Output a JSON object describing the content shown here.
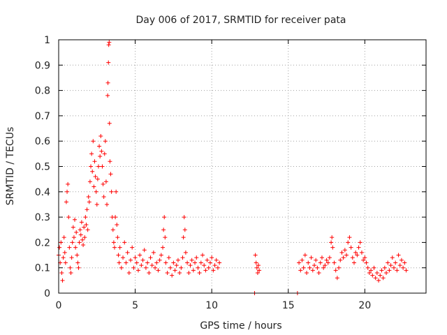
{
  "chart_data": {
    "type": "scatter",
    "title": "Day 006 of 2017, SRMTID for receiver pata",
    "xlabel": "GPS time / hours",
    "ylabel": "SRMTID / TECUs",
    "xlim": [
      0,
      24
    ],
    "ylim": [
      0,
      1
    ],
    "xticks": [
      "0",
      "5",
      "10",
      "15",
      "20"
    ],
    "yticks": [
      "0",
      "0.1",
      "0.2",
      "0.3",
      "0.4",
      "0.5",
      "0.6",
      "0.7",
      "0.8",
      "0.9",
      "1"
    ],
    "grid": true,
    "marker": "+",
    "color": "#ff0000",
    "series": [
      {
        "name": "SRMTID",
        "points": [
          [
            0.0,
            0.15
          ],
          [
            0.05,
            0.18
          ],
          [
            0.1,
            0.12
          ],
          [
            0.15,
            0.2
          ],
          [
            0.2,
            0.08
          ],
          [
            0.25,
            0.05
          ],
          [
            0.3,
            0.14
          ],
          [
            0.35,
            0.22
          ],
          [
            0.4,
            0.16
          ],
          [
            0.45,
            0.12
          ],
          [
            0.5,
            0.36
          ],
          [
            0.55,
            0.4
          ],
          [
            0.6,
            0.43
          ],
          [
            0.65,
            0.3
          ],
          [
            0.7,
            0.18
          ],
          [
            0.75,
            0.1
          ],
          [
            0.8,
            0.08
          ],
          [
            0.85,
            0.14
          ],
          [
            0.9,
            0.2
          ],
          [
            0.95,
            0.26
          ],
          [
            1.0,
            0.22
          ],
          [
            1.05,
            0.29
          ],
          [
            1.1,
            0.18
          ],
          [
            1.15,
            0.24
          ],
          [
            1.2,
            0.15
          ],
          [
            1.25,
            0.12
          ],
          [
            1.3,
            0.1
          ],
          [
            1.35,
            0.2
          ],
          [
            1.4,
            0.25
          ],
          [
            1.45,
            0.23
          ],
          [
            1.5,
            0.28
          ],
          [
            1.55,
            0.21
          ],
          [
            1.6,
            0.19
          ],
          [
            1.65,
            0.26
          ],
          [
            1.7,
            0.22
          ],
          [
            1.75,
            0.3
          ],
          [
            1.8,
            0.27
          ],
          [
            1.85,
            0.33
          ],
          [
            1.9,
            0.25
          ],
          [
            1.95,
            0.38
          ],
          [
            2.0,
            0.36
          ],
          [
            2.05,
            0.44
          ],
          [
            2.1,
            0.5
          ],
          [
            2.15,
            0.55
          ],
          [
            2.2,
            0.48
          ],
          [
            2.25,
            0.6
          ],
          [
            2.3,
            0.42
          ],
          [
            2.35,
            0.52
          ],
          [
            2.4,
            0.46
          ],
          [
            2.45,
            0.4
          ],
          [
            2.5,
            0.35
          ],
          [
            2.55,
            0.45
          ],
          [
            2.6,
            0.5
          ],
          [
            2.65,
            0.58
          ],
          [
            2.7,
            0.54
          ],
          [
            2.75,
            0.62
          ],
          [
            2.8,
            0.56
          ],
          [
            2.85,
            0.5
          ],
          [
            2.9,
            0.43
          ],
          [
            2.95,
            0.38
          ],
          [
            3.0,
            0.55
          ],
          [
            3.05,
            0.6
          ],
          [
            3.1,
            0.44
          ],
          [
            3.15,
            0.35
          ],
          [
            3.2,
            0.78
          ],
          [
            3.22,
            0.83
          ],
          [
            3.25,
            0.91
          ],
          [
            3.27,
            0.98
          ],
          [
            3.3,
            0.99
          ],
          [
            3.32,
            0.67
          ],
          [
            3.35,
            0.52
          ],
          [
            3.4,
            0.47
          ],
          [
            3.45,
            0.4
          ],
          [
            3.5,
            0.3
          ],
          [
            3.55,
            0.25
          ],
          [
            3.6,
            0.2
          ],
          [
            3.65,
            0.18
          ],
          [
            3.7,
            0.3
          ],
          [
            3.75,
            0.4
          ],
          [
            3.8,
            0.27
          ],
          [
            3.85,
            0.22
          ],
          [
            3.9,
            0.15
          ],
          [
            3.95,
            0.12
          ],
          [
            4.0,
            0.18
          ],
          [
            4.1,
            0.1
          ],
          [
            4.2,
            0.14
          ],
          [
            4.3,
            0.2
          ],
          [
            4.4,
            0.12
          ],
          [
            4.5,
            0.16
          ],
          [
            4.6,
            0.08
          ],
          [
            4.7,
            0.13
          ],
          [
            4.8,
            0.18
          ],
          [
            4.9,
            0.1
          ],
          [
            5.0,
            0.14
          ],
          [
            5.1,
            0.12
          ],
          [
            5.2,
            0.09
          ],
          [
            5.3,
            0.15
          ],
          [
            5.4,
            0.11
          ],
          [
            5.5,
            0.13
          ],
          [
            5.6,
            0.17
          ],
          [
            5.7,
            0.1
          ],
          [
            5.8,
            0.12
          ],
          [
            5.9,
            0.08
          ],
          [
            6.0,
            0.14
          ],
          [
            6.1,
            0.11
          ],
          [
            6.2,
            0.16
          ],
          [
            6.3,
            0.1
          ],
          [
            6.4,
            0.12
          ],
          [
            6.5,
            0.09
          ],
          [
            6.6,
            0.13
          ],
          [
            6.7,
            0.15
          ],
          [
            6.8,
            0.18
          ],
          [
            6.85,
            0.25
          ],
          [
            6.9,
            0.3
          ],
          [
            6.95,
            0.22
          ],
          [
            7.0,
            0.12
          ],
          [
            7.1,
            0.08
          ],
          [
            7.2,
            0.14
          ],
          [
            7.3,
            0.1
          ],
          [
            7.4,
            0.07
          ],
          [
            7.5,
            0.12
          ],
          [
            7.6,
            0.09
          ],
          [
            7.7,
            0.11
          ],
          [
            7.8,
            0.13
          ],
          [
            7.9,
            0.08
          ],
          [
            8.0,
            0.1
          ],
          [
            8.1,
            0.14
          ],
          [
            8.15,
            0.22
          ],
          [
            8.2,
            0.3
          ],
          [
            8.25,
            0.25
          ],
          [
            8.3,
            0.16
          ],
          [
            8.4,
            0.12
          ],
          [
            8.5,
            0.08
          ],
          [
            8.6,
            0.11
          ],
          [
            8.7,
            0.13
          ],
          [
            8.8,
            0.09
          ],
          [
            8.9,
            0.12
          ],
          [
            9.0,
            0.14
          ],
          [
            9.1,
            0.1
          ],
          [
            9.2,
            0.08
          ],
          [
            9.3,
            0.12
          ],
          [
            9.4,
            0.15
          ],
          [
            9.5,
            0.11
          ],
          [
            9.6,
            0.09
          ],
          [
            9.7,
            0.13
          ],
          [
            9.8,
            0.1
          ],
          [
            9.9,
            0.12
          ],
          [
            10.0,
            0.14
          ],
          [
            10.1,
            0.09
          ],
          [
            10.2,
            0.11
          ],
          [
            10.3,
            0.13
          ],
          [
            10.4,
            0.1
          ],
          [
            10.5,
            0.12
          ],
          [
            12.85,
            0.15
          ],
          [
            12.9,
            0.12
          ],
          [
            12.95,
            0.1
          ],
          [
            13.0,
            0.08
          ],
          [
            13.05,
            0.11
          ],
          [
            13.1,
            0.09
          ],
          [
            12.8,
            0.0
          ],
          [
            15.6,
            0.0
          ],
          [
            15.7,
            0.12
          ],
          [
            15.8,
            0.09
          ],
          [
            15.9,
            0.13
          ],
          [
            16.0,
            0.1
          ],
          [
            16.1,
            0.15
          ],
          [
            16.2,
            0.08
          ],
          [
            16.3,
            0.12
          ],
          [
            16.4,
            0.1
          ],
          [
            16.5,
            0.14
          ],
          [
            16.6,
            0.09
          ],
          [
            16.7,
            0.11
          ],
          [
            16.8,
            0.13
          ],
          [
            16.9,
            0.1
          ],
          [
            17.0,
            0.08
          ],
          [
            17.1,
            0.12
          ],
          [
            17.2,
            0.14
          ],
          [
            17.3,
            0.1
          ],
          [
            17.4,
            0.11
          ],
          [
            17.5,
            0.13
          ],
          [
            17.6,
            0.12
          ],
          [
            17.7,
            0.14
          ],
          [
            17.8,
            0.2
          ],
          [
            17.85,
            0.22
          ],
          [
            17.9,
            0.18
          ],
          [
            18.0,
            0.12
          ],
          [
            18.1,
            0.09
          ],
          [
            18.2,
            0.06
          ],
          [
            18.3,
            0.1
          ],
          [
            18.4,
            0.13
          ],
          [
            18.5,
            0.16
          ],
          [
            18.6,
            0.14
          ],
          [
            18.7,
            0.17
          ],
          [
            18.8,
            0.15
          ],
          [
            18.9,
            0.2
          ],
          [
            19.0,
            0.22
          ],
          [
            19.1,
            0.18
          ],
          [
            19.2,
            0.14
          ],
          [
            19.3,
            0.12
          ],
          [
            19.4,
            0.16
          ],
          [
            19.5,
            0.15
          ],
          [
            19.6,
            0.18
          ],
          [
            19.7,
            0.2
          ],
          [
            19.8,
            0.16
          ],
          [
            19.9,
            0.13
          ],
          [
            20.0,
            0.14
          ],
          [
            20.1,
            0.12
          ],
          [
            20.2,
            0.1
          ],
          [
            20.3,
            0.08
          ],
          [
            20.4,
            0.09
          ],
          [
            20.5,
            0.07
          ],
          [
            20.6,
            0.1
          ],
          [
            20.7,
            0.06
          ],
          [
            20.8,
            0.08
          ],
          [
            20.9,
            0.05
          ],
          [
            21.0,
            0.07
          ],
          [
            21.1,
            0.09
          ],
          [
            21.2,
            0.06
          ],
          [
            21.3,
            0.1
          ],
          [
            21.4,
            0.08
          ],
          [
            21.5,
            0.12
          ],
          [
            21.6,
            0.09
          ],
          [
            21.7,
            0.11
          ],
          [
            21.8,
            0.14
          ],
          [
            21.9,
            0.1
          ],
          [
            22.0,
            0.12
          ],
          [
            22.1,
            0.09
          ],
          [
            22.2,
            0.15
          ],
          [
            22.3,
            0.11
          ],
          [
            22.4,
            0.13
          ],
          [
            22.5,
            0.1
          ],
          [
            22.6,
            0.12
          ],
          [
            22.7,
            0.09
          ]
        ]
      }
    ]
  }
}
